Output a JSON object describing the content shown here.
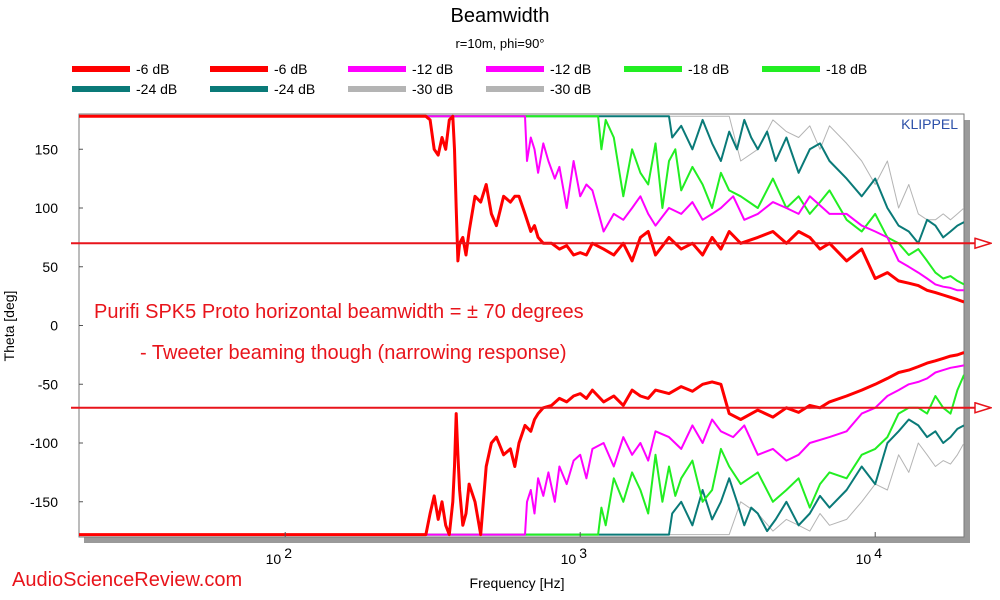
{
  "chart_data": {
    "type": "line",
    "title": "Beamwidth",
    "subtitle": "r=10m, phi=90°",
    "xlabel": "Frequency [Hz]",
    "ylabel": "Theta [deg]",
    "xscale": "log",
    "xlim": [
      20,
      20000
    ],
    "ylim": [
      -180,
      180
    ],
    "xticks": [
      {
        "value": 100,
        "base": "10",
        "exp": "2"
      },
      {
        "value": 1000,
        "base": "10",
        "exp": "3"
      },
      {
        "value": 10000,
        "base": "10",
        "exp": "4"
      }
    ],
    "yticks": [
      150,
      100,
      50,
      0,
      -50,
      -100,
      -150
    ],
    "grid": false,
    "legend_position": "top",
    "watermark": "KLIPPEL",
    "legend": [
      {
        "label": "-6 dB",
        "color": "#ff0000"
      },
      {
        "label": "-6 dB",
        "color": "#ff0000"
      },
      {
        "label": "-12 dB",
        "color": "#ff00ff"
      },
      {
        "label": "-12 dB",
        "color": "#ff00ff"
      },
      {
        "label": "-18 dB",
        "color": "#22ee22"
      },
      {
        "label": "-18 dB",
        "color": "#22ee22"
      },
      {
        "label": "-24 dB",
        "color": "#0a7a78"
      },
      {
        "label": "-24 dB",
        "color": "#0a7a78"
      },
      {
        "label": "-30 dB",
        "color": "#b4b4b4"
      },
      {
        "label": "-30 dB",
        "color": "#b4b4b4"
      }
    ],
    "series": [
      {
        "color": "#b4b4b4",
        "width": 1,
        "x": [
          20,
          2000,
          3200,
          3500,
          4000,
          4500,
          5000,
          5500,
          6000,
          6500,
          7000,
          8000,
          9000,
          10000,
          11000,
          12000,
          13000,
          14000,
          15000,
          16000,
          17000,
          18000,
          19000,
          20000
        ],
        "y": [
          178,
          178,
          178,
          140,
          150,
          175,
          165,
          160,
          170,
          150,
          170,
          155,
          140,
          120,
          140,
          100,
          120,
          95,
          90,
          90,
          95,
          90,
          95,
          100
        ]
      },
      {
        "color": "#b4b4b4",
        "width": 1,
        "x": [
          20,
          2000,
          3200,
          3500,
          4000,
          4500,
          5000,
          5500,
          6000,
          6500,
          7000,
          8000,
          9000,
          10000,
          11000,
          12000,
          13000,
          14000,
          15000,
          16000,
          17000,
          18000,
          19000,
          20000
        ],
        "y": [
          -178,
          -178,
          -178,
          -150,
          -160,
          -175,
          -165,
          -170,
          -175,
          -160,
          -170,
          -165,
          -150,
          -135,
          -140,
          -110,
          -125,
          -100,
          -110,
          -120,
          -115,
          -118,
          -110,
          -100
        ]
      },
      {
        "color": "#0a7a78",
        "width": 2,
        "x": [
          20,
          2000,
          2050,
          2200,
          2400,
          2600,
          2800,
          3000,
          3200,
          3400,
          3600,
          3800,
          4000,
          4300,
          4600,
          5000,
          5500,
          6000,
          6500,
          7000,
          8000,
          9000,
          10000,
          11000,
          12000,
          13000,
          14000,
          15000,
          16000,
          17000,
          18000,
          19000,
          20000
        ],
        "y": [
          178,
          178,
          160,
          170,
          150,
          175,
          155,
          140,
          165,
          150,
          175,
          160,
          150,
          165,
          140,
          160,
          130,
          150,
          155,
          140,
          125,
          110,
          125,
          100,
          85,
          80,
          70,
          90,
          85,
          75,
          80,
          85,
          88
        ]
      },
      {
        "color": "#0a7a78",
        "width": 2,
        "x": [
          20,
          2000,
          2050,
          2200,
          2400,
          2600,
          2800,
          3000,
          3200,
          3400,
          3600,
          3800,
          4000,
          4300,
          4600,
          5000,
          5500,
          6000,
          6500,
          7000,
          8000,
          9000,
          10000,
          11000,
          12000,
          13000,
          14000,
          15000,
          16000,
          17000,
          18000,
          19000,
          20000
        ],
        "y": [
          -178,
          -178,
          -160,
          -150,
          -170,
          -140,
          -165,
          -150,
          -130,
          -150,
          -170,
          -155,
          -160,
          -175,
          -165,
          -150,
          -170,
          -160,
          -145,
          -155,
          -140,
          -120,
          -135,
          -100,
          -90,
          -80,
          -85,
          -95,
          -90,
          -100,
          -95,
          -88,
          -85
        ]
      },
      {
        "color": "#22ee22",
        "width": 2,
        "x": [
          20,
          1150,
          1180,
          1220,
          1300,
          1400,
          1500,
          1600,
          1700,
          1800,
          1900,
          2000,
          2100,
          2200,
          2400,
          2600,
          2800,
          3000,
          3200,
          3500,
          4000,
          4500,
          5000,
          5500,
          6000,
          6500,
          7000,
          8000,
          9000,
          10000,
          11000,
          12000,
          13000,
          14000,
          15000,
          16000,
          17000,
          18000,
          19000,
          20000
        ],
        "y": [
          178,
          178,
          150,
          175,
          160,
          110,
          150,
          130,
          120,
          155,
          100,
          140,
          150,
          115,
          135,
          120,
          100,
          130,
          115,
          110,
          100,
          125,
          100,
          110,
          95,
          105,
          115,
          90,
          80,
          95,
          75,
          70,
          60,
          65,
          55,
          45,
          40,
          42,
          38,
          35
        ]
      },
      {
        "color": "#22ee22",
        "width": 2,
        "x": [
          20,
          1150,
          1180,
          1220,
          1300,
          1400,
          1500,
          1600,
          1700,
          1800,
          1900,
          2000,
          2100,
          2200,
          2400,
          2600,
          2800,
          3000,
          3200,
          3500,
          4000,
          4500,
          5000,
          5500,
          6000,
          6500,
          7000,
          8000,
          9000,
          10000,
          11000,
          12000,
          13000,
          14000,
          15000,
          16000,
          17000,
          18000,
          19000,
          20000
        ],
        "y": [
          -178,
          -178,
          -155,
          -170,
          -130,
          -150,
          -125,
          -140,
          -160,
          -110,
          -150,
          -120,
          -145,
          -130,
          -115,
          -150,
          -140,
          -105,
          -120,
          -135,
          -125,
          -150,
          -140,
          -130,
          -155,
          -135,
          -125,
          -130,
          -110,
          -105,
          -95,
          -75,
          -70,
          -70,
          -75,
          -60,
          -70,
          -75,
          -55,
          -42
        ]
      },
      {
        "color": "#ff00ff",
        "width": 2,
        "x": [
          20,
          650,
          660,
          680,
          700,
          720,
          750,
          780,
          820,
          850,
          900,
          950,
          1000,
          1050,
          1100,
          1200,
          1300,
          1400,
          1500,
          1600,
          1700,
          1800,
          2000,
          2200,
          2400,
          2600,
          2800,
          3000,
          3300,
          3600,
          4000,
          4500,
          5000,
          5500,
          6000,
          7000,
          8000,
          9000,
          10000,
          11000,
          12000,
          13000,
          14000,
          15000,
          16000,
          17000,
          18000,
          19000,
          20000
        ],
        "y": [
          178,
          178,
          140,
          160,
          150,
          130,
          155,
          140,
          125,
          135,
          100,
          140,
          110,
          120,
          115,
          80,
          95,
          90,
          100,
          110,
          95,
          85,
          100,
          95,
          105,
          90,
          95,
          100,
          110,
          90,
          95,
          105,
          100,
          95,
          110,
          95,
          95,
          85,
          80,
          75,
          55,
          50,
          45,
          40,
          35,
          33,
          32,
          30,
          30
        ]
      },
      {
        "color": "#ff00ff",
        "width": 2,
        "x": [
          20,
          650,
          660,
          680,
          700,
          720,
          750,
          780,
          820,
          850,
          900,
          950,
          1000,
          1050,
          1100,
          1200,
          1300,
          1400,
          1500,
          1600,
          1700,
          1800,
          2000,
          2200,
          2400,
          2600,
          2800,
          3000,
          3300,
          3600,
          4000,
          4500,
          5000,
          5500,
          6000,
          7000,
          8000,
          9000,
          10000,
          11000,
          12000,
          13000,
          14000,
          15000,
          16000,
          17000,
          18000,
          19000,
          20000
        ],
        "y": [
          -178,
          -178,
          -150,
          -140,
          -160,
          -130,
          -145,
          -125,
          -150,
          -120,
          -135,
          -115,
          -110,
          -130,
          -105,
          -100,
          -120,
          -95,
          -110,
          -100,
          -115,
          -90,
          -95,
          -105,
          -85,
          -100,
          -80,
          -90,
          -95,
          -85,
          -110,
          -105,
          -115,
          -110,
          -100,
          -95,
          -90,
          -75,
          -70,
          -60,
          -55,
          -50,
          -48,
          -45,
          -40,
          -38,
          -36,
          -35,
          -34
        ]
      },
      {
        "color": "#ff0000",
        "width": 3,
        "x": [
          20,
          300,
          310,
          320,
          330,
          340,
          350,
          360,
          370,
          375,
          380,
          385,
          390,
          400,
          410,
          420,
          440,
          460,
          480,
          500,
          520,
          550,
          580,
          600,
          620,
          650,
          680,
          700,
          720,
          750,
          800,
          850,
          900,
          950,
          1000,
          1050,
          1100,
          1200,
          1300,
          1400,
          1500,
          1600,
          1700,
          1800,
          2000,
          2200,
          2400,
          2600,
          2800,
          3000,
          3200,
          3500,
          4000,
          4500,
          5000,
          5500,
          6000,
          6500,
          7000,
          8000,
          9000,
          10000,
          11000,
          12000,
          13000,
          14000,
          15000,
          16000,
          17000,
          18000,
          19000,
          20000
        ],
        "y": [
          178,
          178,
          175,
          150,
          145,
          160,
          150,
          175,
          178,
          150,
          100,
          55,
          70,
          75,
          60,
          80,
          110,
          105,
          120,
          95,
          85,
          110,
          105,
          110,
          110,
          95,
          80,
          85,
          75,
          70,
          70,
          65,
          68,
          60,
          62,
          60,
          70,
          65,
          60,
          70,
          55,
          75,
          80,
          60,
          75,
          65,
          70,
          60,
          75,
          65,
          80,
          70,
          75,
          80,
          70,
          80,
          75,
          65,
          70,
          55,
          65,
          40,
          45,
          38,
          36,
          34,
          30,
          28,
          26,
          24,
          22,
          20
        ]
      },
      {
        "color": "#ff0000",
        "width": 3,
        "x": [
          20,
          300,
          310,
          320,
          330,
          340,
          350,
          360,
          370,
          375,
          380,
          385,
          390,
          400,
          410,
          420,
          440,
          460,
          480,
          500,
          520,
          550,
          580,
          600,
          620,
          650,
          680,
          700,
          720,
          750,
          800,
          850,
          900,
          950,
          1000,
          1050,
          1100,
          1200,
          1300,
          1400,
          1500,
          1600,
          1700,
          1800,
          2000,
          2200,
          2400,
          2600,
          2800,
          3000,
          3200,
          3500,
          4000,
          4500,
          5000,
          5500,
          6000,
          6500,
          7000,
          8000,
          9000,
          10000,
          11000,
          12000,
          13000,
          14000,
          15000,
          16000,
          17000,
          18000,
          19000,
          20000
        ],
        "y": [
          -178,
          -178,
          -160,
          -145,
          -165,
          -150,
          -170,
          -178,
          -150,
          -120,
          -75,
          -110,
          -140,
          -170,
          -160,
          -135,
          -150,
          -178,
          -120,
          -100,
          -95,
          -110,
          -105,
          -120,
          -100,
          -85,
          -90,
          -80,
          -75,
          -70,
          -68,
          -62,
          -65,
          -60,
          -58,
          -62,
          -55,
          -65,
          -60,
          -68,
          -55,
          -60,
          -62,
          -55,
          -58,
          -52,
          -56,
          -50,
          -48,
          -50,
          -75,
          -80,
          -72,
          -78,
          -70,
          -74,
          -68,
          -70,
          -65,
          -60,
          -55,
          -50,
          -45,
          -40,
          -38,
          -35,
          -32,
          -30,
          -28,
          -26,
          -25,
          -23
        ]
      }
    ],
    "reference_lines": [
      {
        "y": 70,
        "color": "#e8141b"
      },
      {
        "y": -70,
        "color": "#e8141b"
      }
    ],
    "annotations": [
      "Purifi SPK5 Proto horizontal beamwidth = ± 70 degrees",
      "- Tweeter beaming though (narrowing response)"
    ]
  },
  "footer": {
    "site": "AudioScienceReview.com"
  }
}
